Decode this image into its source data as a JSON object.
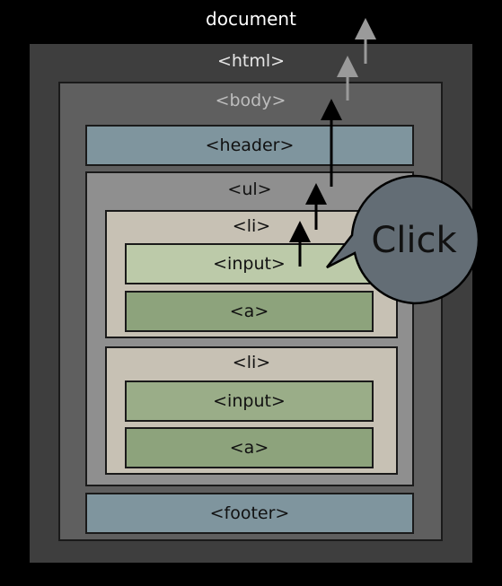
{
  "labels": {
    "document": "document",
    "html": "<html>",
    "body": "<body>",
    "header": "<header>",
    "ul": "<ul>",
    "li1": "<li>",
    "input1": "<input>",
    "a1": "<a>",
    "li2": "<li>",
    "input2": "<input>",
    "a2": "<a>",
    "footer": "<footer>"
  },
  "bubble": {
    "text": "Click"
  },
  "colors": {
    "background": "#000000",
    "html": "#3e3e3e",
    "body": "#5f5f5f",
    "header_footer": "#7f959e",
    "ul": "#8f8f8f",
    "li": "#c7c1b4",
    "input": "#9aad88",
    "input_highlight": "#bccaa9",
    "anchor": "#8da37c",
    "bubble": "#636d75"
  }
}
